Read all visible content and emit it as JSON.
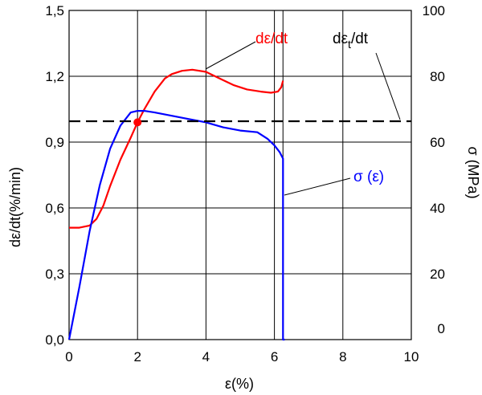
{
  "chart_data": {
    "type": "line",
    "xlabel": "ε(%)",
    "ylabel_left": "dε/dt(%/min)",
    "ylabel_right": "σ (MPa)",
    "xlim": [
      0,
      10
    ],
    "ylim_left": [
      0,
      1.5
    ],
    "ylim_right": [
      0,
      100
    ],
    "x_ticks": [
      "0",
      "2",
      "4",
      "6",
      "8",
      "10"
    ],
    "y_left_ticks": [
      "0,0",
      "0,3",
      "0,6",
      "0,9",
      "1,2",
      "1,5"
    ],
    "y_right_ticks": [
      "0",
      "20",
      "40",
      "60",
      "80",
      "100"
    ],
    "grid": true,
    "colors": {
      "strain_rate": "#ff0000",
      "stress": "#0000ff",
      "threshold": "#000000"
    },
    "series": [
      {
        "name": "dε/dt",
        "axis": "left",
        "x": [
          0,
          0.3,
          0.6,
          0.8,
          1.0,
          1.2,
          1.5,
          1.8,
          2.0,
          2.2,
          2.5,
          2.8,
          3.0,
          3.3,
          3.6,
          4.0,
          4.4,
          4.8,
          5.2,
          5.6,
          5.9,
          6.1,
          6.2,
          6.25
        ],
        "y": [
          0.51,
          0.51,
          0.52,
          0.55,
          0.61,
          0.7,
          0.82,
          0.92,
          0.99,
          1.05,
          1.13,
          1.19,
          1.21,
          1.225,
          1.23,
          1.22,
          1.19,
          1.16,
          1.14,
          1.13,
          1.125,
          1.13,
          1.15,
          1.18
        ]
      },
      {
        "name": "σ (ε)",
        "axis": "right",
        "x": [
          0,
          0.3,
          0.6,
          0.9,
          1.2,
          1.5,
          1.8,
          2.0,
          2.2,
          2.5,
          3.0,
          3.5,
          4.0,
          4.5,
          5.0,
          5.5,
          5.8,
          6.0,
          6.15,
          6.25,
          6.25,
          6.3
        ],
        "y": [
          0,
          16,
          33,
          47,
          58,
          65,
          69,
          69.5,
          69.5,
          69,
          68,
          67,
          66,
          64.5,
          63.5,
          63,
          61,
          59,
          57,
          55,
          0,
          0
        ]
      },
      {
        "name": "dεt/dt",
        "axis": "left",
        "style": "dashed",
        "x": [
          0,
          10
        ],
        "y": [
          0.995,
          0.995
        ]
      }
    ],
    "marker": {
      "x": 2.0,
      "y": 0.99
    },
    "vertical_line_x": 6.25,
    "annotations": {
      "strain_rate": "dε/dt",
      "stress": "σ (ε)",
      "threshold_main": "dε",
      "threshold_sub": "t",
      "threshold_tail": "/dt"
    }
  }
}
